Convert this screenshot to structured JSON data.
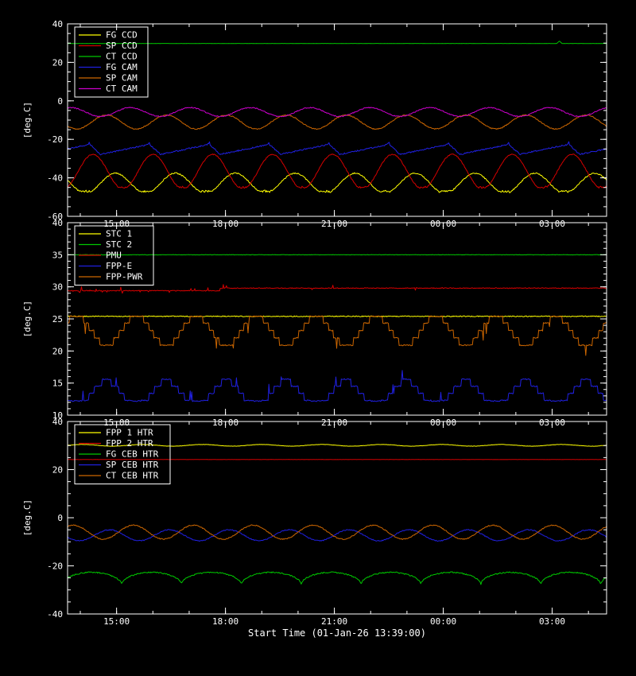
{
  "chart_data": {
    "type": "line",
    "xlabel": "Start Time (01-Jan-26 13:39:00)",
    "background": "#000000",
    "axis_color": "#ffffff",
    "x_axis": {
      "span_hours": 14.85,
      "minor_first": 0.35,
      "minor_step": 1,
      "major_ticks": [
        {
          "t": 1.35,
          "label": "15:00"
        },
        {
          "t": 4.35,
          "label": "18:00"
        },
        {
          "t": 7.35,
          "label": "21:00"
        },
        {
          "t": 10.35,
          "label": "00:00"
        },
        {
          "t": 13.35,
          "label": "03:00"
        }
      ]
    },
    "panels": [
      {
        "name": "ccd-cam-temperatures",
        "ylabel": "[deg.C]",
        "ylim": [
          -60,
          40
        ],
        "yticks": [
          -60,
          -40,
          -20,
          0,
          20,
          40
        ],
        "y_minor_step": 5,
        "series": [
          {
            "label": "FG CCD",
            "color": "#ffff00",
            "gen": {
              "type": "sine",
              "mean": -42.8,
              "amp": 5.2,
              "period_h": 1.65,
              "phase": 0.45,
              "clip_min": -47.0,
              "clip_jitter": 0.9,
              "noise": 0.3
            }
          },
          {
            "label": "SP CCD",
            "color": "#d40000",
            "gen": {
              "type": "sine",
              "mean": -36.8,
              "amp": 9.0,
              "period_h": 1.65,
              "phase": 0.826,
              "clip_min": -44.9,
              "clip_jitter": 0.9,
              "noise": 0.25
            }
          },
          {
            "label": "CT CCD",
            "color": "#00c800",
            "gen": {
              "type": "flat",
              "value": 29.8,
              "spikes": [
                {
                  "t": 13.55,
                  "dv": 1.3,
                  "w": 0.07
                }
              ],
              "noise": 0.05
            }
          },
          {
            "label": "FG CAM",
            "color": "#2020e0",
            "gen": {
              "type": "saw",
              "min": -27.8,
              "max": -22.6,
              "period_h": 1.65,
              "phase": 0.45,
              "rise_frac": 0.82,
              "peak_spike": 1.1,
              "noise": 0.35
            }
          },
          {
            "label": "SP CAM",
            "color": "#cc6600",
            "gen": {
              "type": "sine",
              "mean": -11.0,
              "amp": 3.6,
              "period_h": 1.65,
              "phase": 0.6,
              "noise": 0.25
            }
          },
          {
            "label": "CT CAM",
            "color": "#cc00cc",
            "gen": {
              "type": "sine",
              "mean": -5.8,
              "amp": 2.3,
              "period_h": 1.65,
              "phase": 0.2,
              "noise": 0.25
            }
          }
        ]
      },
      {
        "name": "electronics-temperatures",
        "ylabel": "[deg.C]",
        "ylim": [
          10,
          40
        ],
        "yticks": [
          10,
          15,
          20,
          25,
          30,
          35,
          40
        ],
        "y_minor_step": 1,
        "series": [
          {
            "label": "STC 1",
            "color": "#ffff00",
            "gen": {
              "type": "flat",
              "value": 25.4,
              "noise": 0.07
            }
          },
          {
            "label": "STC 2",
            "color": "#00c800",
            "gen": {
              "type": "flat",
              "value": 35.0,
              "noise": 0.03
            }
          },
          {
            "label": "PMU",
            "color": "#d40000",
            "gen": {
              "type": "flat",
              "value": 29.4,
              "step_t": 4.2,
              "step_to": 29.8,
              "noise_prob": 0.1,
              "noise_amp": 1.0,
              "noise_before": 4.5,
              "noise": 0.06
            }
          },
          {
            "label": "FPP-E",
            "color": "#2020e0",
            "gen": {
              "type": "steps",
              "mean": 13.4,
              "amp": 1.9,
              "period_h": 1.65,
              "phase": 0.6,
              "step": 1.1,
              "min": 12.2,
              "spike_prob": 0.02,
              "spike_amp": 1.4,
              "noise": 0.08
            }
          },
          {
            "label": "FPP-PWR",
            "color": "#cc6600",
            "gen": {
              "type": "steps",
              "mean": 23.2,
              "amp": 2.3,
              "period_h": 1.65,
              "phase": 0.1,
              "step": 1.15,
              "max": 25.4,
              "spike_prob": 0.015,
              "spike_amp": -1.6,
              "noise": 0.08
            }
          }
        ]
      },
      {
        "name": "heater-temperatures",
        "ylabel": "[deg.C]",
        "ylim": [
          -40,
          40
        ],
        "yticks": [
          -40,
          -20,
          0,
          20,
          40
        ],
        "y_minor_step": 5,
        "series": [
          {
            "label": "FPP 1 HTR",
            "color": "#ffff00",
            "gen": {
              "type": "sine",
              "mean": 30.1,
              "amp": 0.35,
              "period_h": 1.65,
              "phase": 0.0,
              "noise": 0.06
            }
          },
          {
            "label": "FPP 2 HTR",
            "color": "#d40000",
            "gen": {
              "type": "flat",
              "value": 24.2,
              "noise": 0.05
            }
          },
          {
            "label": "FG CEB HTR",
            "color": "#00c800",
            "gen": {
              "type": "cusp",
              "top": -22.7,
              "depth": 5.3,
              "period_h": 1.65,
              "phase": 0.1,
              "sharp": 0.45,
              "noise": 0.25
            }
          },
          {
            "label": "SP CEB HTR",
            "color": "#2020e0",
            "gen": {
              "type": "sine",
              "mean": -7.3,
              "amp": 2.3,
              "period_h": 1.65,
              "phase": 0.55,
              "noise": 0.2
            }
          },
          {
            "label": "CT CEB HTR",
            "color": "#cc6600",
            "gen": {
              "type": "sine",
              "mean": -6.0,
              "amp": 2.9,
              "period_h": 1.65,
              "phase": 0.15,
              "noise": 0.2
            }
          }
        ]
      }
    ]
  }
}
